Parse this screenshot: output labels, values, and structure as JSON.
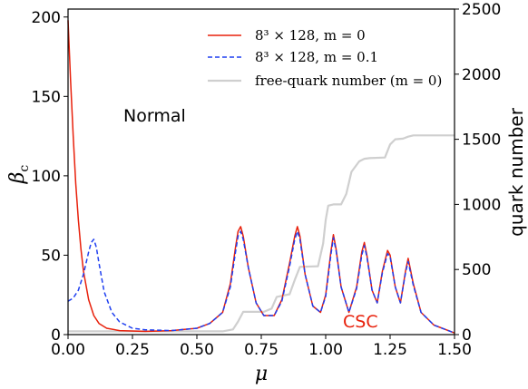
{
  "chart_data": {
    "type": "line",
    "x_label": "μ",
    "y_label": "β",
    "y_label_sub": "c",
    "y2_label": "quark number",
    "xlim": [
      0,
      1.5
    ],
    "ylim": [
      0,
      205
    ],
    "y2lim": [
      0,
      2500
    ],
    "x_ticks": [
      0.0,
      0.25,
      0.5,
      0.75,
      1.0,
      1.25,
      1.5
    ],
    "x_tick_labels": [
      "0.00",
      "0.25",
      "0.50",
      "0.75",
      "1.00",
      "1.25",
      "1.50"
    ],
    "y_ticks": [
      0,
      50,
      100,
      150,
      200
    ],
    "y_tick_labels": [
      "0",
      "50",
      "100",
      "150",
      "200"
    ],
    "y2_ticks": [
      0,
      500,
      1000,
      1500,
      2000,
      2500
    ],
    "y2_tick_labels": [
      "0",
      "500",
      "1000",
      "1500",
      "2000",
      "2500"
    ],
    "grid": false,
    "legend_position": "top-right",
    "annotations": [
      {
        "text": "Normal",
        "x": 0.25,
        "y": 125,
        "color": "#000000"
      },
      {
        "text": "CSC",
        "x": 1.08,
        "y": 3,
        "color": "#e8210c"
      }
    ],
    "series": [
      {
        "name": "8³ × 128, m = 0",
        "axis": "left",
        "color": "#e8210c",
        "style": "solid",
        "x": [
          0.0,
          0.01,
          0.02,
          0.03,
          0.04,
          0.05,
          0.06,
          0.08,
          0.1,
          0.12,
          0.15,
          0.2,
          0.3,
          0.4,
          0.5,
          0.55,
          0.6,
          0.63,
          0.65,
          0.66,
          0.67,
          0.68,
          0.7,
          0.73,
          0.76,
          0.8,
          0.83,
          0.86,
          0.88,
          0.89,
          0.9,
          0.92,
          0.95,
          0.98,
          1.0,
          1.02,
          1.03,
          1.04,
          1.06,
          1.09,
          1.12,
          1.14,
          1.15,
          1.16,
          1.18,
          1.2,
          1.22,
          1.24,
          1.25,
          1.27,
          1.29,
          1.31,
          1.32,
          1.34,
          1.37,
          1.42,
          1.5
        ],
        "y": [
          198,
          160,
          125,
          95,
          72,
          54,
          40,
          22,
          12,
          7,
          4,
          2.5,
          2,
          2.5,
          4,
          7,
          14,
          32,
          55,
          65,
          68,
          62,
          42,
          20,
          12,
          12,
          22,
          45,
          62,
          68,
          62,
          38,
          18,
          14,
          25,
          52,
          63,
          54,
          30,
          14,
          30,
          52,
          58,
          50,
          28,
          20,
          40,
          53,
          50,
          30,
          20,
          40,
          48,
          32,
          14,
          6,
          1
        ]
      },
      {
        "name": "8³ × 128, m = 0.1",
        "axis": "left",
        "color": "#1f3ff0",
        "style": "dashed",
        "x": [
          0.0,
          0.02,
          0.04,
          0.06,
          0.08,
          0.09,
          0.1,
          0.11,
          0.12,
          0.14,
          0.17,
          0.2,
          0.25,
          0.3,
          0.4,
          0.5,
          0.55,
          0.6,
          0.63,
          0.65,
          0.66,
          0.67,
          0.68,
          0.7,
          0.73,
          0.76,
          0.8,
          0.83,
          0.86,
          0.88,
          0.89,
          0.9,
          0.92,
          0.95,
          0.98,
          1.0,
          1.02,
          1.03,
          1.04,
          1.06,
          1.09,
          1.12,
          1.14,
          1.15,
          1.16,
          1.18,
          1.2,
          1.22,
          1.24,
          1.25,
          1.27,
          1.29,
          1.31,
          1.32,
          1.34,
          1.37,
          1.42,
          1.5
        ],
        "y": [
          21,
          23,
          28,
          38,
          52,
          58,
          60,
          55,
          45,
          27,
          14,
          8,
          4,
          3,
          2.5,
          4,
          7,
          14,
          30,
          52,
          62,
          65,
          60,
          42,
          20,
          12,
          12,
          21,
          43,
          60,
          65,
          60,
          38,
          18,
          14,
          24,
          50,
          61,
          53,
          30,
          14,
          29,
          50,
          56,
          49,
          28,
          20,
          39,
          51,
          49,
          30,
          20,
          39,
          46,
          31,
          14,
          6,
          1
        ]
      },
      {
        "name": "free-quark number (m = 0)",
        "axis": "right",
        "color": "#cfcfcf",
        "style": "solid",
        "x": [
          0.0,
          0.6,
          0.64,
          0.66,
          0.68,
          0.76,
          0.79,
          0.81,
          0.86,
          0.88,
          0.9,
          0.97,
          0.99,
          1.0,
          1.01,
          1.03,
          1.06,
          1.08,
          1.1,
          1.13,
          1.15,
          1.17,
          1.23,
          1.25,
          1.27,
          1.3,
          1.32,
          1.34,
          1.5
        ],
        "y": [
          25,
          25,
          40,
          100,
          175,
          175,
          200,
          290,
          310,
          420,
          520,
          525,
          700,
          880,
          990,
          1000,
          1000,
          1080,
          1250,
          1330,
          1350,
          1355,
          1360,
          1460,
          1500,
          1505,
          1520,
          1530,
          1530
        ]
      }
    ]
  }
}
